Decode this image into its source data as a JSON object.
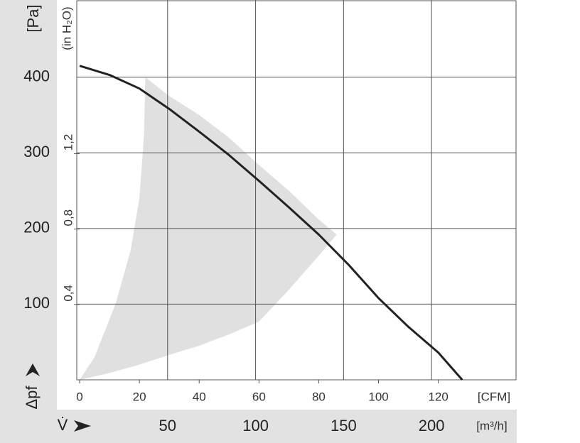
{
  "chart_data": {
    "type": "fan-curve",
    "y_label": "Δpf",
    "y_unit": "[Pa]",
    "y2_unit": "(in H₂O)",
    "x_label": "V̇",
    "x_unit": "[CFM]",
    "x2_unit": "[m³/h]",
    "xlim": [
      0,
      146
    ],
    "xticks": [
      0,
      20,
      40,
      60,
      80,
      100,
      120
    ],
    "x2lim": [
      0,
      248
    ],
    "x2ticks": [
      50,
      100,
      150,
      200
    ],
    "ylim": [
      0,
      502
    ],
    "yticks": [
      100,
      200,
      300,
      400
    ],
    "y2lim": [
      0,
      2.016
    ],
    "y2ticks": [
      {
        "value": 0.4,
        "label": "0,4"
      },
      {
        "value": 0.8,
        "label": "0,8"
      },
      {
        "value": 1.2,
        "label": "1,2"
      }
    ],
    "grid": true,
    "curve": {
      "color": "#222222",
      "x": [
        0,
        10,
        20,
        30,
        40,
        50,
        60,
        70,
        80,
        90,
        100,
        110,
        120,
        128
      ],
      "values": [
        415,
        403,
        385,
        358,
        328,
        297,
        263,
        228,
        192,
        152,
        108,
        70,
        36,
        0
      ]
    },
    "operating_range": {
      "color": "#e0e0e0",
      "x": [
        0,
        5,
        12,
        17,
        20,
        21.5,
        22,
        30,
        40,
        50,
        60,
        70,
        80,
        86,
        80,
        70,
        60,
        50,
        40,
        30,
        20,
        10,
        0
      ],
      "values": [
        0,
        30,
        100,
        170,
        240,
        320,
        400,
        375,
        350,
        320,
        284,
        250,
        212,
        192,
        164,
        119,
        77,
        60,
        45,
        33,
        20,
        9,
        0
      ]
    }
  }
}
